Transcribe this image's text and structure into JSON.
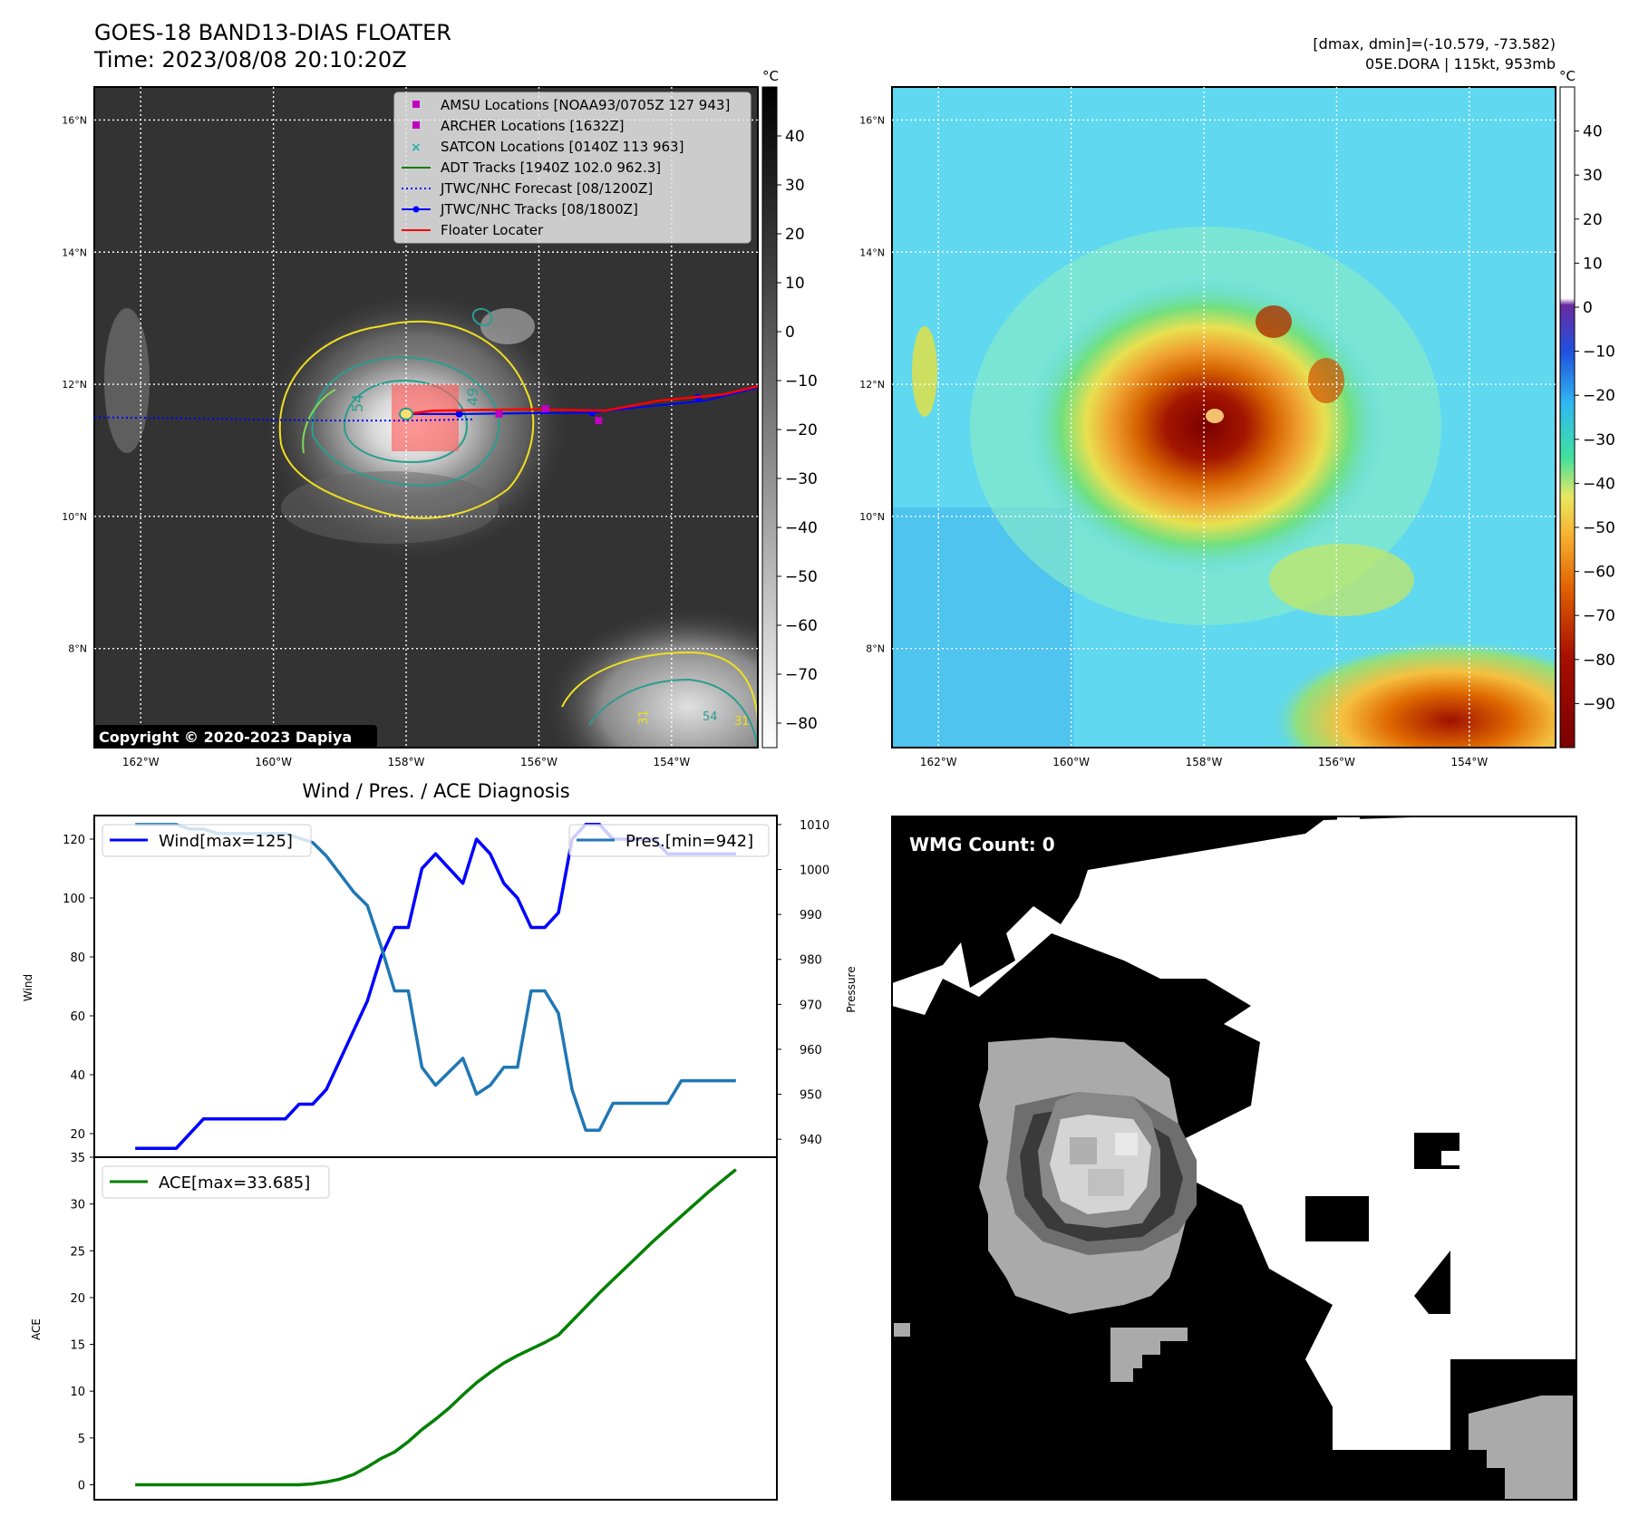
{
  "header": {
    "title": "GOES-18 BAND13-DIAS FLOATER",
    "time": "Time: 2023/08/08 20:10:20Z",
    "dmax_dmin": "[dmax, dmin]=(-10.579, -73.582)",
    "storm": "05E.DORA | 115kt, 953mb"
  },
  "colors": {
    "wind": "#0000ff",
    "pressure": "#1f77b4",
    "ace": "#008000",
    "floater": "#ff0000",
    "amsu": "#c000c0",
    "satcon": "#20b2aa",
    "adt": "#008000",
    "forecast": "#0000ff",
    "contour_yellow": "#f0e020",
    "contour_teal": "#2a9d8f"
  },
  "map_panels": {
    "lat_ticks": [
      "16°N",
      "14°N",
      "12°N",
      "10°N",
      "8°N"
    ],
    "lon_ticks": [
      "162°W",
      "160°W",
      "158°W",
      "156°W",
      "154°W"
    ],
    "lat_values": [
      16,
      14,
      12,
      10,
      8
    ],
    "lon_values": [
      -162,
      -160,
      -158,
      -156,
      -154
    ],
    "lat_range": [
      6.5,
      16.5
    ],
    "lon_range": [
      -162.7,
      -152.7
    ],
    "copyright": "Copyright © 2020-2023 Dapiya",
    "unit": "°C",
    "bw_colorbar_ticks": [
      "40",
      "30",
      "20",
      "10",
      "0",
      "−10",
      "−20",
      "−30",
      "−40",
      "−50",
      "−60",
      "−70",
      "−80"
    ],
    "bw_colorbar_values": [
      40,
      30,
      20,
      10,
      0,
      -10,
      -20,
      -30,
      -40,
      -50,
      -60,
      -70,
      -80
    ],
    "bw_colorbar_range": [
      -85,
      50
    ],
    "color_colorbar_ticks": [
      "40",
      "30",
      "20",
      "10",
      "0",
      "−10",
      "−20",
      "−30",
      "−40",
      "−50",
      "−60",
      "−70",
      "−80",
      "−90"
    ],
    "color_colorbar_values": [
      40,
      30,
      20,
      10,
      0,
      -10,
      -20,
      -30,
      -40,
      -50,
      -60,
      -70,
      -80,
      -90
    ],
    "color_colorbar_range": [
      -100,
      50
    ],
    "contour_labels": [
      "54",
      "49",
      "31",
      "54",
      "31"
    ],
    "legend": [
      {
        "label": "AMSU Locations [NOAA93/0705Z 127 943]",
        "marker": "square",
        "color": "#c000c0"
      },
      {
        "label": "ARCHER Locations [1632Z]",
        "marker": "square",
        "color": "#c000c0"
      },
      {
        "label": "SATCON Locations [0140Z 113 963]",
        "marker": "x",
        "color": "#20b2aa"
      },
      {
        "label": "ADT Tracks [1940Z 102.0 962.3]",
        "marker": "line",
        "color": "#008000"
      },
      {
        "label": "JTWC/NHC Forecast [08/1200Z]",
        "marker": "dotted",
        "color": "#0000ff"
      },
      {
        "label": "JTWC/NHC Tracks [08/1800Z]",
        "marker": "line-dot",
        "color": "#0000ff"
      },
      {
        "label": "Floater Locater",
        "marker": "line",
        "color": "#ff0000"
      }
    ],
    "storm_center": {
      "lon": -158.0,
      "lat": 11.55
    },
    "wmg_label": "WMG Count: 0"
  },
  "chart_data": [
    {
      "type": "line",
      "title": "Wind / Pres. / ACE Diagnosis",
      "ylabel": "Wind",
      "y2label": "Pressure",
      "ylim": [
        12,
        128
      ],
      "y2lim": [
        936,
        1012
      ],
      "yticks": [
        20,
        40,
        60,
        80,
        100,
        120
      ],
      "y2ticks": [
        940,
        950,
        960,
        970,
        980,
        990,
        1000,
        1010
      ],
      "x": [
        0,
        1,
        2,
        3,
        4,
        5,
        6,
        7,
        8,
        9,
        10,
        11,
        12,
        13,
        14,
        15,
        16,
        17,
        18,
        19,
        20,
        21,
        22,
        23,
        24,
        25,
        26,
        27,
        28,
        29,
        30,
        31,
        32,
        33,
        34,
        35,
        36,
        37,
        38,
        39,
        40,
        41,
        42,
        43,
        44
      ],
      "series": [
        {
          "name": "Wind[max=125]",
          "axis": "left",
          "values": [
            15,
            15,
            15,
            15,
            20,
            25,
            25,
            25,
            25,
            25,
            25,
            25,
            30,
            30,
            35,
            45,
            55,
            65,
            80,
            90,
            90,
            110,
            115,
            110,
            105,
            120,
            115,
            105,
            100,
            90,
            90,
            95,
            120,
            125,
            125,
            120,
            120,
            120,
            120,
            115,
            115,
            115,
            115,
            115,
            115
          ]
        },
        {
          "name": "Pres.[min=942]",
          "axis": "right",
          "values": [
            1010,
            1010,
            1010,
            1010,
            1009,
            1009,
            1008,
            1008,
            1008,
            1008,
            1008,
            1008,
            1007,
            1006,
            1003,
            999,
            995,
            992,
            983,
            973,
            973,
            956,
            952,
            955,
            958,
            950,
            952,
            956,
            956,
            973,
            973,
            968,
            951,
            942,
            942,
            948,
            948,
            948,
            948,
            948,
            953,
            953,
            953,
            953,
            953
          ]
        }
      ]
    },
    {
      "type": "line",
      "ylabel": "ACE",
      "ylim": [
        -1.6,
        35
      ],
      "yticks": [
        0,
        5,
        10,
        15,
        20,
        25,
        30,
        35
      ],
      "x": [
        0,
        1,
        2,
        3,
        4,
        5,
        6,
        7,
        8,
        9,
        10,
        11,
        12,
        13,
        14,
        15,
        16,
        17,
        18,
        19,
        20,
        21,
        22,
        23,
        24,
        25,
        26,
        27,
        28,
        29,
        30,
        31,
        32,
        33,
        34,
        35,
        36,
        37,
        38,
        39,
        40,
        41,
        42,
        43,
        44
      ],
      "series": [
        {
          "name": "ACE[max=33.685]",
          "values": [
            0,
            0,
            0,
            0,
            0,
            0,
            0,
            0,
            0,
            0,
            0,
            0,
            0,
            0.1,
            0.3,
            0.6,
            1.1,
            1.9,
            2.8,
            3.5,
            4.6,
            5.9,
            7.0,
            8.2,
            9.6,
            10.9,
            12.0,
            13.0,
            13.8,
            14.5,
            15.2,
            16.0,
            17.5,
            19.0,
            20.5,
            21.9,
            23.3,
            24.7,
            26.1,
            27.4,
            28.7,
            30.0,
            31.3,
            32.5,
            33.685
          ]
        }
      ]
    }
  ]
}
